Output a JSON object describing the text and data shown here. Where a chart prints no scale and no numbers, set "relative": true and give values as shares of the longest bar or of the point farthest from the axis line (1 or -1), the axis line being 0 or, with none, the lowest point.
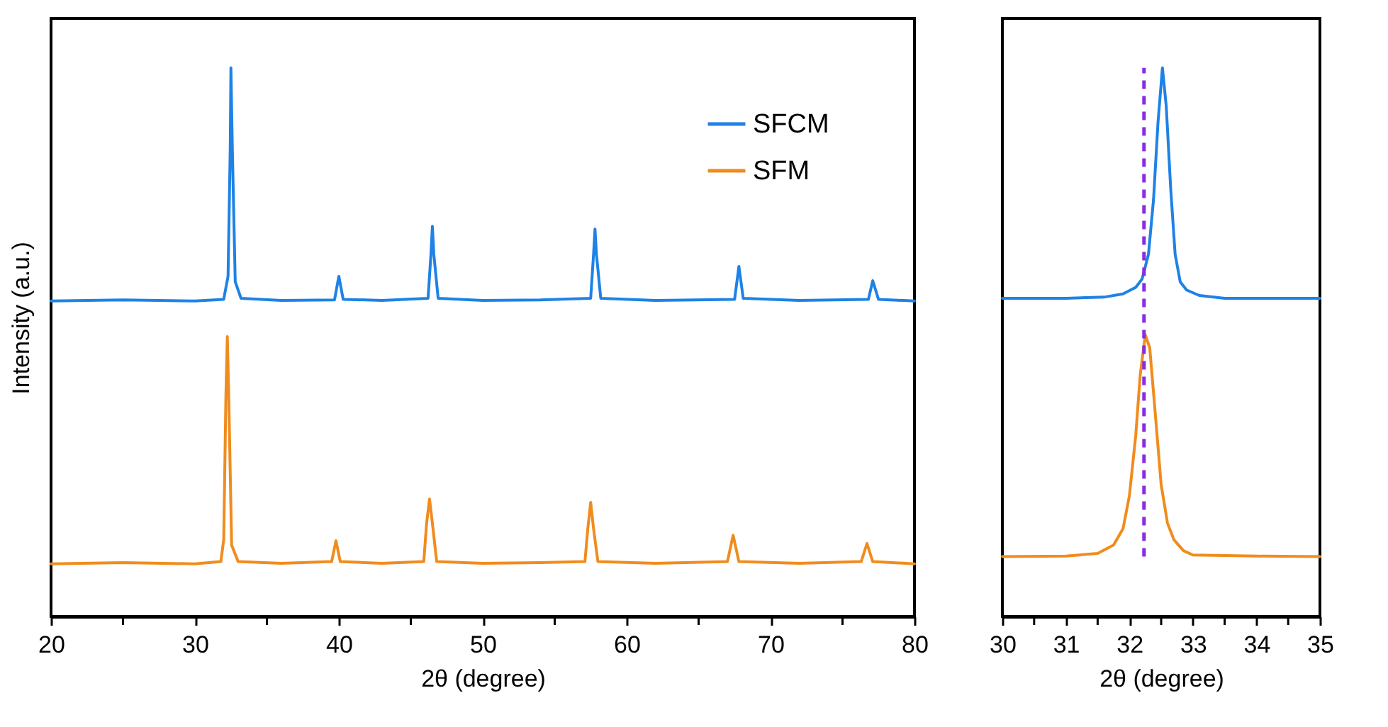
{
  "chart_data": [
    {
      "type": "line",
      "relative": true,
      "xlabel": "2θ (degree)",
      "ylabel": "Intensity (a.u.)",
      "legend": "top right",
      "grid": false,
      "xlim": [
        20,
        80
      ],
      "xticks": [
        20,
        {
          "value": 25,
          "label": null
        },
        30,
        {
          "value": 35,
          "label": null
        },
        40,
        {
          "value": 45,
          "label": null
        },
        50,
        {
          "value": 55,
          "label": null
        },
        60,
        {
          "value": 65,
          "label": null
        },
        70,
        {
          "value": 75,
          "label": null
        },
        80
      ],
      "series": [
        {
          "name": "SFCM",
          "color": "#1e82e6",
          "x": [
            20,
            25,
            30,
            32.0,
            32.3,
            32.45,
            32.5,
            32.6,
            32.8,
            33.2,
            36,
            39.7,
            40.0,
            40.3,
            43,
            46.2,
            46.4,
            46.5,
            46.6,
            46.9,
            50,
            54,
            57.5,
            57.7,
            57.8,
            57.9,
            58.2,
            62,
            67.5,
            67.8,
            68.1,
            72,
            76.8,
            77.1,
            77.5,
            80
          ],
          "values": [
            0.575,
            0.577,
            0.575,
            0.578,
            0.62,
            0.85,
            1.0,
            0.85,
            0.61,
            0.58,
            0.576,
            0.577,
            0.62,
            0.578,
            0.576,
            0.58,
            0.66,
            0.711,
            0.66,
            0.58,
            0.576,
            0.577,
            0.58,
            0.66,
            0.706,
            0.66,
            0.58,
            0.576,
            0.578,
            0.638,
            0.58,
            0.576,
            0.578,
            0.612,
            0.578,
            0.575
          ]
        },
        {
          "name": "SFM",
          "color": "#f08c1e",
          "x": [
            20,
            25,
            30,
            31.8,
            32.0,
            32.15,
            32.25,
            32.35,
            32.55,
            33.0,
            36,
            39.5,
            39.8,
            40.1,
            43,
            45.9,
            46.1,
            46.3,
            46.5,
            46.8,
            50,
            54,
            57.1,
            57.3,
            57.5,
            57.7,
            58.0,
            62,
            67.0,
            67.4,
            67.8,
            72,
            76.3,
            76.7,
            77.1,
            80
          ],
          "values": [
            0.096,
            0.098,
            0.096,
            0.1,
            0.14,
            0.4,
            0.51,
            0.4,
            0.13,
            0.1,
            0.097,
            0.1,
            0.138,
            0.1,
            0.097,
            0.1,
            0.17,
            0.214,
            0.17,
            0.1,
            0.097,
            0.098,
            0.1,
            0.16,
            0.208,
            0.16,
            0.1,
            0.097,
            0.1,
            0.148,
            0.1,
            0.097,
            0.1,
            0.133,
            0.1,
            0.096
          ]
        }
      ]
    },
    {
      "type": "line",
      "relative": true,
      "xlabel": "2θ (degree)",
      "grid": false,
      "xlim": [
        30,
        35
      ],
      "xticks": [
        30,
        {
          "value": 30.5,
          "label": null
        },
        31,
        {
          "value": 31.5,
          "label": null
        },
        32,
        {
          "value": 32.5,
          "label": null
        },
        33,
        {
          "value": 33.5,
          "label": null
        },
        34,
        {
          "value": 34.5,
          "label": null
        },
        35
      ],
      "ref_lines": [
        {
          "axis": "x",
          "value": 32.23,
          "color": "#8a2be2",
          "line_style": "dashed"
        }
      ],
      "series": [
        {
          "color": "#1e82e6",
          "x": [
            30,
            31,
            31.6,
            31.9,
            32.1,
            32.2,
            32.3,
            32.38,
            32.45,
            32.52,
            32.58,
            32.65,
            32.72,
            32.8,
            32.9,
            33.1,
            33.5,
            34,
            35
          ],
          "values": [
            0.58,
            0.58,
            0.582,
            0.588,
            0.6,
            0.615,
            0.66,
            0.76,
            0.9,
            1.0,
            0.93,
            0.78,
            0.66,
            0.61,
            0.595,
            0.585,
            0.58,
            0.58,
            0.58
          ]
        },
        {
          "color": "#f08c1e",
          "x": [
            30,
            31,
            31.5,
            31.75,
            31.9,
            32.0,
            32.1,
            32.17,
            32.25,
            32.32,
            32.4,
            32.5,
            32.6,
            32.7,
            32.85,
            33,
            34,
            35
          ],
          "values": [
            0.109,
            0.11,
            0.115,
            0.13,
            0.16,
            0.22,
            0.33,
            0.44,
            0.513,
            0.49,
            0.38,
            0.24,
            0.17,
            0.14,
            0.12,
            0.112,
            0.11,
            0.109
          ]
        }
      ]
    }
  ]
}
